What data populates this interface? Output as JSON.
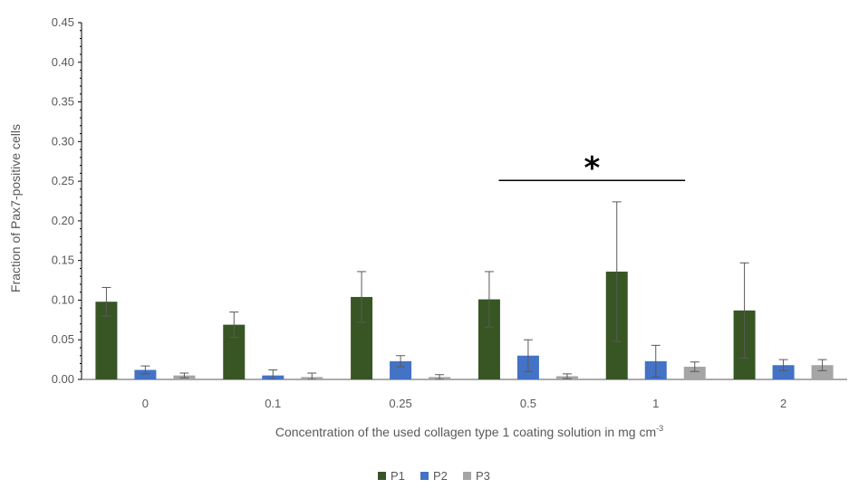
{
  "chart_data": {
    "type": "bar",
    "title": "",
    "xlabel": "Concentration of the used collagen type 1 coating solution in mg cm",
    "xlabel_superscript": "-3",
    "ylabel": "Fraction of Pax7-positive cells",
    "ylim": [
      0,
      0.45
    ],
    "yticks": [
      "0.00",
      "0.05",
      "0.10",
      "0.15",
      "0.20",
      "0.25",
      "0.30",
      "0.35",
      "0.40",
      "0.45"
    ],
    "categories": [
      "0",
      "0.1",
      "0.25",
      "0.5",
      "1",
      "2"
    ],
    "series": [
      {
        "name": "P1",
        "color": "#375623",
        "values": [
          0.098,
          0.069,
          0.104,
          0.101,
          0.136,
          0.087
        ],
        "errors": [
          0.018,
          0.016,
          0.032,
          0.035,
          0.088,
          0.06
        ]
      },
      {
        "name": "P2",
        "color": "#4472C4",
        "values": [
          0.012,
          0.005,
          0.023,
          0.03,
          0.023,
          0.018
        ],
        "errors": [
          0.005,
          0.007,
          0.007,
          0.02,
          0.02,
          0.007
        ]
      },
      {
        "name": "P3",
        "color": "#A5A5A5",
        "values": [
          0.005,
          0.003,
          0.003,
          0.004,
          0.016,
          0.018
        ],
        "errors": [
          0.003,
          0.005,
          0.003,
          0.003,
          0.006,
          0.007
        ]
      }
    ],
    "significance": {
      "symbol": "*",
      "from_category": "0.5",
      "to_category": "1",
      "y": 0.251
    },
    "legend_position": "bottom",
    "grid": false
  }
}
